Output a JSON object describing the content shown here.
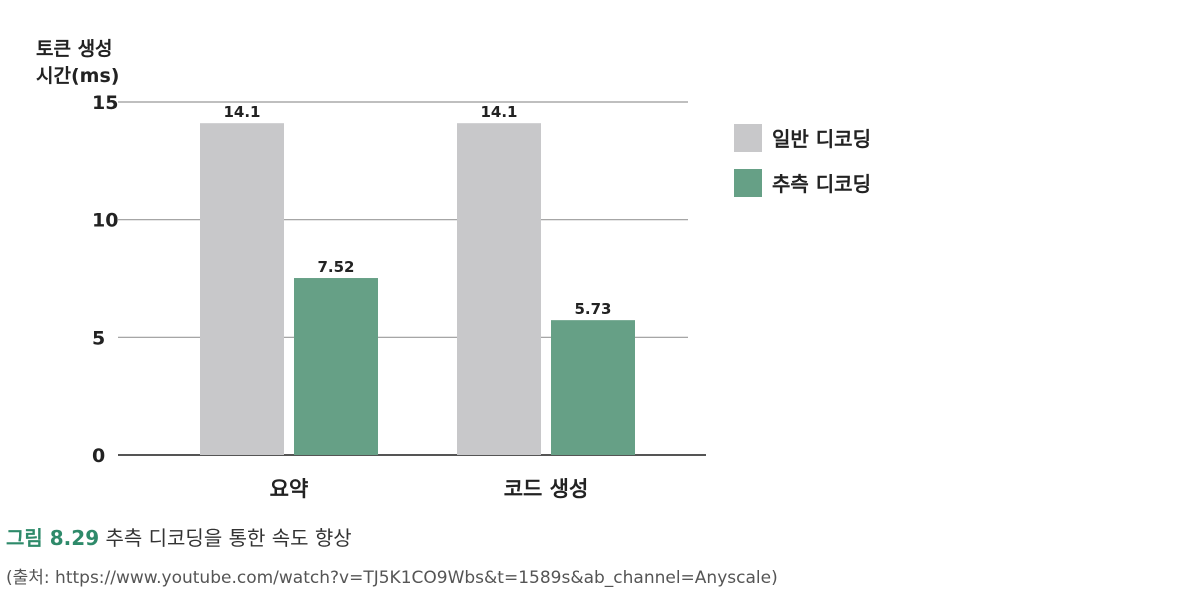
{
  "chart_data": {
    "type": "bar",
    "ylabel_lines": [
      "토큰 생성",
      "시간(ms)"
    ],
    "categories": [
      "요약",
      "코드 생성"
    ],
    "series": [
      {
        "name": "일반 디코딩",
        "values": [
          14.1,
          14.1
        ],
        "value_labels": [
          "14.1",
          "14.1"
        ],
        "color": "#c8c8ca"
      },
      {
        "name": "추측 디코딩",
        "values": [
          7.52,
          5.73
        ],
        "value_labels": [
          "7.52",
          "5.73"
        ],
        "color": "#66a086"
      }
    ],
    "yticks": [
      0,
      5,
      10,
      15
    ],
    "ylim": [
      0,
      15
    ],
    "grid": true,
    "legend_position": "right"
  },
  "caption": {
    "figure_label": "그림 8.29",
    "text": "추측 디코딩을 통한 속도 향상"
  },
  "source": "(출처: https://www.youtube.com/watch?v=TJ5K1CO9Wbs&t=1589s&ab_channel=Anyscale)",
  "colors": {
    "grid": "#999999",
    "axis": "#555555",
    "accent": "#2e8a6a"
  }
}
